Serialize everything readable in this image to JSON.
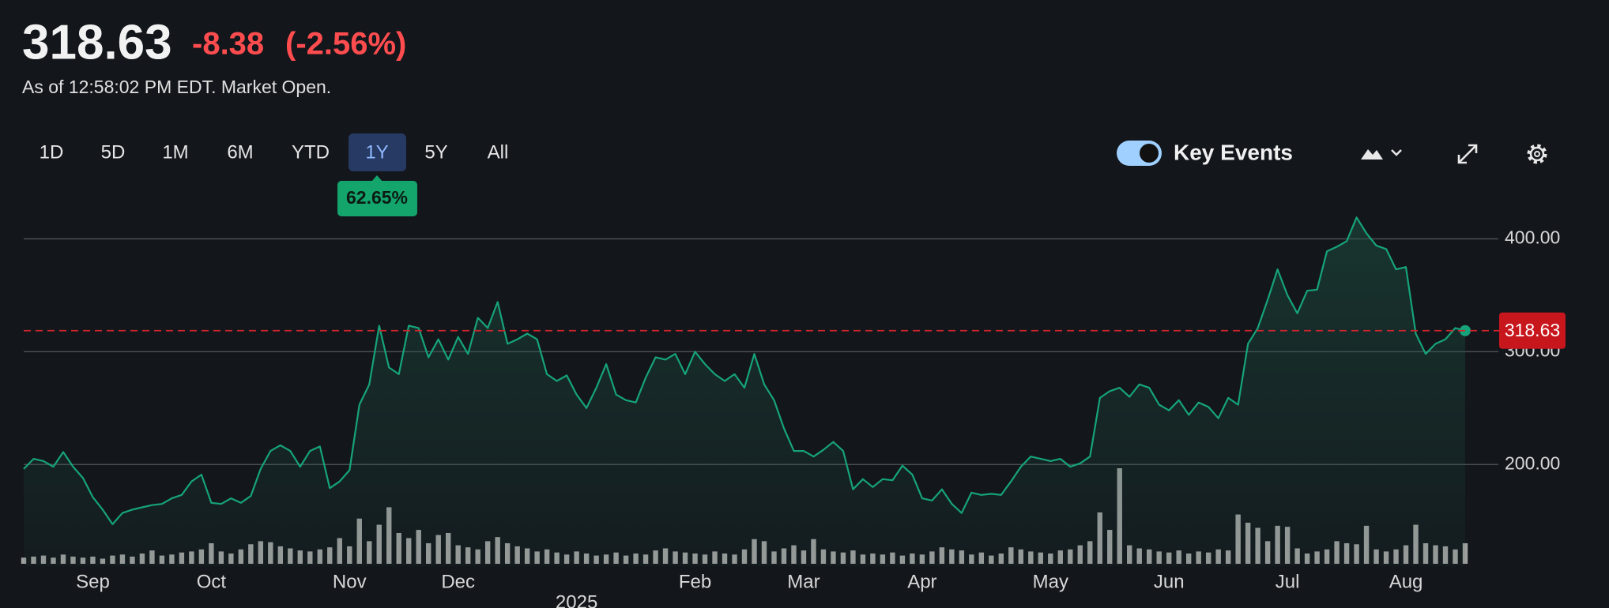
{
  "header": {
    "price": "318.63",
    "change": "-8.38",
    "change_pct": "(-2.56%)",
    "timestamp": "As of 12:58:02 PM EDT. Market Open."
  },
  "ranges": {
    "options": [
      "1D",
      "5D",
      "1M",
      "6M",
      "YTD",
      "1Y",
      "5Y",
      "All"
    ],
    "selected": 5,
    "return_label": "62.65%"
  },
  "key_events": {
    "label": "Key Events",
    "enabled": true
  },
  "chart_data": {
    "type": "area",
    "color": "#16a37b",
    "volume_color": "#a0a0a0",
    "grid": true,
    "ylim": [
      110,
      425
    ],
    "yticks": [
      {
        "value": 200,
        "label": "200.00"
      },
      {
        "value": 300,
        "label": "300.00"
      },
      {
        "value": 400,
        "label": "400.00"
      }
    ],
    "current_price": 318.63,
    "current_price_color": "#c8161d",
    "categories": [
      null,
      null,
      null,
      null,
      null,
      null,
      null,
      "Sep",
      null,
      null,
      null,
      null,
      null,
      null,
      null,
      null,
      null,
      null,
      null,
      "Oct",
      null,
      null,
      null,
      null,
      null,
      null,
      null,
      null,
      null,
      null,
      null,
      null,
      null,
      "Nov",
      null,
      null,
      null,
      null,
      null,
      null,
      null,
      null,
      null,
      null,
      "Dec",
      null,
      null,
      null,
      null,
      null,
      null,
      null,
      null,
      null,
      null,
      null,
      "2025",
      null,
      null,
      null,
      null,
      null,
      null,
      null,
      null,
      null,
      null,
      null,
      "Feb",
      null,
      null,
      null,
      null,
      null,
      null,
      null,
      null,
      null,
      null,
      "Mar",
      null,
      null,
      null,
      null,
      null,
      null,
      null,
      null,
      null,
      null,
      null,
      "Apr",
      null,
      null,
      null,
      null,
      null,
      null,
      null,
      null,
      null,
      null,
      null,
      null,
      "May",
      null,
      null,
      null,
      null,
      null,
      null,
      null,
      null,
      null,
      null,
      null,
      "Jun",
      null,
      null,
      null,
      null,
      null,
      null,
      null,
      null,
      null,
      null,
      null,
      "Jul",
      null,
      null,
      null,
      null,
      null,
      null,
      null,
      null,
      null,
      null,
      null,
      "Aug",
      null,
      null,
      null,
      null,
      null,
      null
    ],
    "values": [
      196,
      205,
      203,
      198,
      211,
      198,
      188,
      171,
      160,
      147,
      157,
      160,
      162,
      164,
      165,
      170,
      173,
      185,
      191,
      166,
      165,
      170,
      166,
      172,
      196,
      212,
      217,
      212,
      198,
      212,
      216,
      179,
      185,
      195,
      253,
      271,
      323,
      286,
      280,
      323,
      321,
      295,
      311,
      293,
      313,
      298,
      330,
      321,
      344,
      307,
      311,
      316,
      311,
      280,
      274,
      279,
      262,
      250,
      268,
      289,
      262,
      257,
      255,
      277,
      295,
      293,
      298,
      280,
      300,
      289,
      280,
      274,
      280,
      268,
      298,
      271,
      257,
      232,
      212,
      212,
      207,
      213,
      220,
      212,
      178,
      187,
      180,
      187,
      186,
      199,
      191,
      170,
      168,
      178,
      165,
      157,
      175,
      173,
      174,
      173,
      185,
      198,
      207,
      205,
      203,
      205,
      198,
      201,
      207,
      259,
      265,
      268,
      260,
      271,
      268,
      253,
      248,
      257,
      244,
      255,
      251,
      241,
      259,
      253,
      307,
      321,
      346,
      373,
      350,
      334,
      354,
      355,
      389,
      393,
      398,
      419,
      405,
      394,
      391,
      373,
      375,
      316,
      298,
      307,
      311,
      321,
      318.63
    ],
    "volume": [
      6,
      7,
      8,
      6,
      9,
      7,
      6,
      7,
      5,
      8,
      9,
      7,
      10,
      13,
      8,
      9,
      11,
      12,
      14,
      20,
      12,
      10,
      14,
      19,
      22,
      21,
      17,
      15,
      13,
      12,
      14,
      16,
      25,
      17,
      44,
      22,
      38,
      55,
      30,
      25,
      33,
      20,
      28,
      30,
      18,
      16,
      14,
      22,
      26,
      20,
      17,
      15,
      12,
      14,
      11,
      9,
      12,
      10,
      8,
      9,
      11,
      8,
      10,
      9,
      13,
      15,
      12,
      11,
      10,
      9,
      12,
      10,
      9,
      14,
      24,
      22,
      12,
      15,
      18,
      13,
      24,
      14,
      12,
      11,
      13,
      9,
      10,
      9,
      11,
      8,
      10,
      9,
      12,
      16,
      14,
      13,
      9,
      11,
      8,
      10,
      16,
      14,
      12,
      11,
      10,
      13,
      14,
      18,
      22,
      50,
      33,
      93,
      18,
      15,
      14,
      12,
      11,
      13,
      10,
      12,
      11,
      14,
      13,
      48,
      40,
      35,
      22,
      37,
      36,
      15,
      10,
      12,
      14,
      22,
      20,
      19,
      37,
      14,
      12,
      14,
      18,
      38,
      20,
      18,
      17,
      14,
      20
    ]
  }
}
